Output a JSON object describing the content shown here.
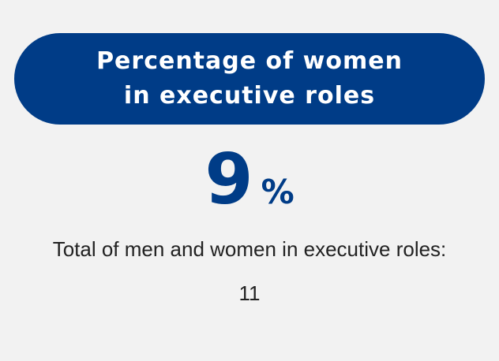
{
  "card": {
    "title": "Percentage of women in executive roles",
    "stat": {
      "value": "9",
      "unit": "%"
    },
    "note": "Total of men and women in executive roles: 11"
  },
  "colors": {
    "brand": "#003c87",
    "background": "#f2f2f2",
    "text": "#222222"
  }
}
